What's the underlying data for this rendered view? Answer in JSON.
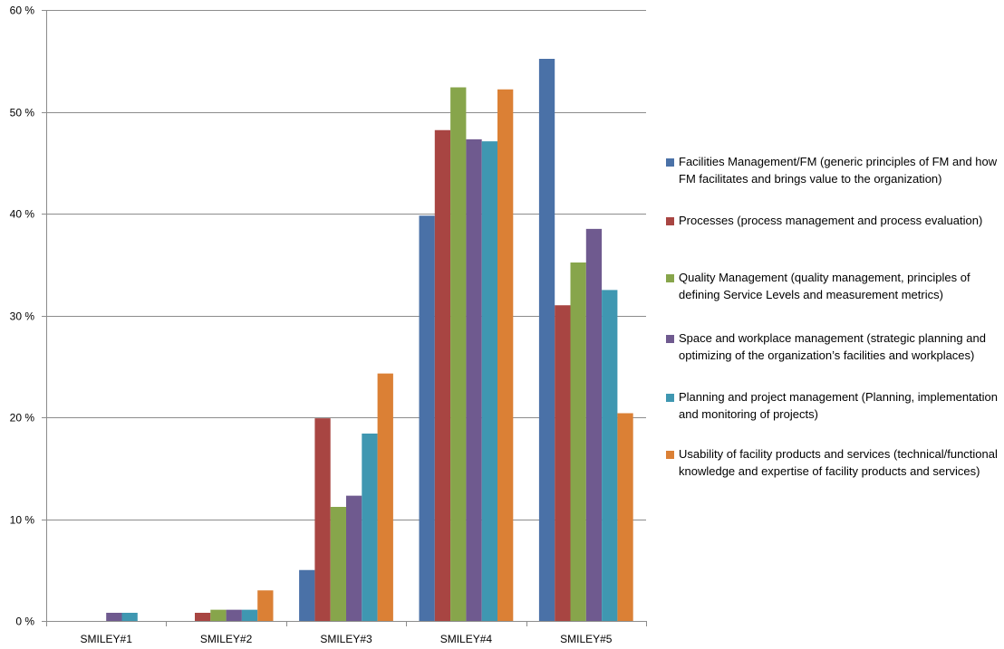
{
  "chart_data": {
    "type": "bar",
    "title": "",
    "xlabel": "",
    "ylabel": "",
    "ylim": [
      0,
      60
    ],
    "yticks": [
      "0 %",
      "10 %",
      "20 %",
      "30 %",
      "40 %",
      "50 %",
      "60 %"
    ],
    "grid": true,
    "legend_position": "right",
    "categories": [
      "SMILEY#1",
      "SMILEY#2",
      "SMILEY#3",
      "SMILEY#4",
      "SMILEY#5"
    ],
    "series": [
      {
        "name": "Facilities Management/FM (generic principles of FM and how FM facilitates and brings value to the organization)",
        "color": "#4a71a7",
        "values": [
          0,
          0,
          5.0,
          39.8,
          55.2
        ]
      },
      {
        "name": "Processes (process management and process evaluation)",
        "color": "#a84542",
        "values": [
          0,
          0.8,
          19.9,
          48.2,
          31.0
        ]
      },
      {
        "name": "Quality Management (quality management, principles of defining Service Levels and measurement metrics)",
        "color": "#87a54b",
        "values": [
          0,
          1.1,
          11.2,
          52.4,
          35.2
        ]
      },
      {
        "name": "Space and workplace management (strategic planning and optimizing of the organization’s facilities and workplaces)",
        "color": "#6f5a8f",
        "values": [
          0.8,
          1.1,
          12.3,
          47.3,
          38.5
        ]
      },
      {
        "name": "Planning and project management (Planning, implementation and monitoring of projects)",
        "color": "#3f97b1",
        "values": [
          0.8,
          1.1,
          18.4,
          47.1,
          32.5
        ]
      },
      {
        "name": "Usability of facility products and services (technical/functional knowledge and expertise of facility products and services)",
        "color": "#db8035",
        "values": [
          0,
          3.0,
          24.3,
          52.2,
          20.4
        ]
      }
    ]
  }
}
